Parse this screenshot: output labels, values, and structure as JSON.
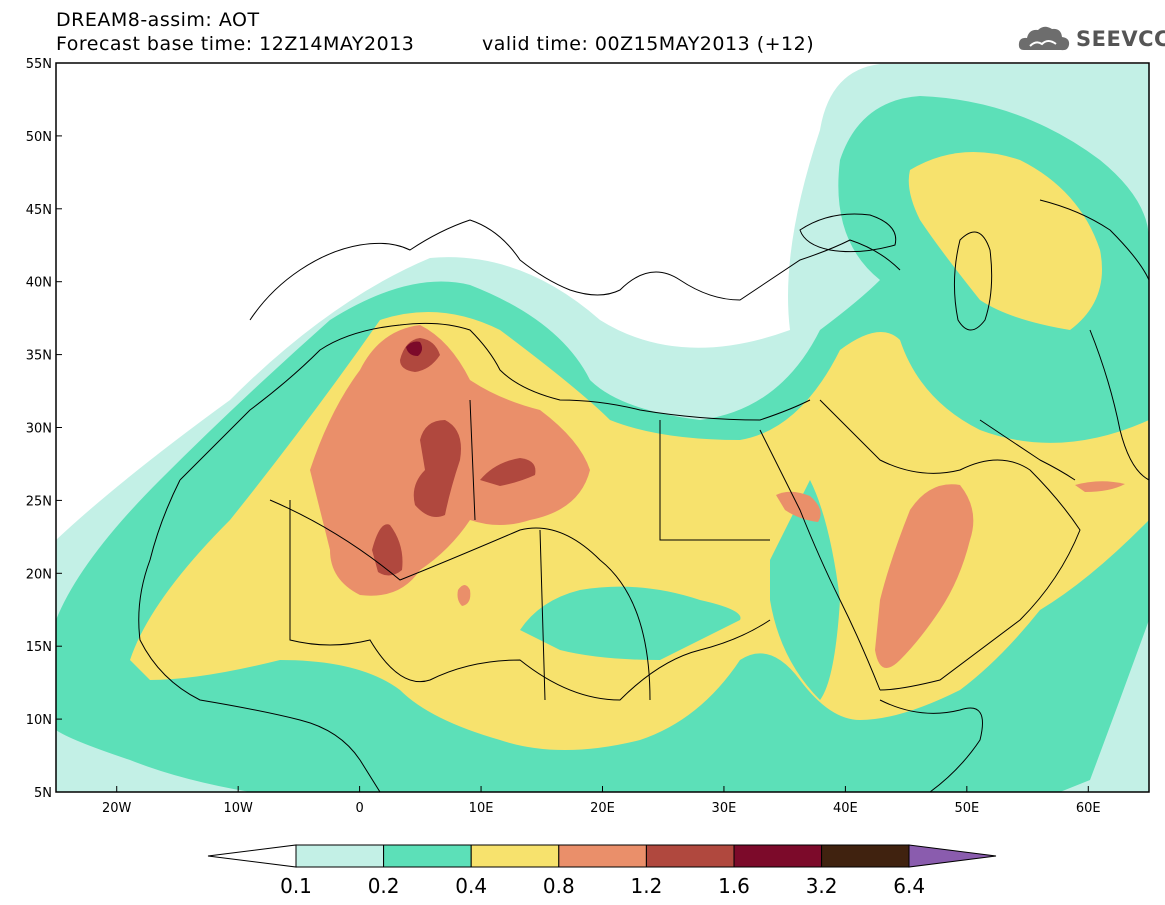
{
  "header": {
    "title_line1": "DREAM8-assim: AOT",
    "title_line2": "Forecast base time: 12Z14MAY2013",
    "valid_time": "valid time: 00Z15MAY2013 (+12)",
    "logo_text": "SEEVCCC"
  },
  "map": {
    "variable": "AOT",
    "lon_range": [
      -25,
      65
    ],
    "lat_range": [
      5,
      55
    ],
    "lat_ticks": [
      "55N",
      "50N",
      "45N",
      "40N",
      "35N",
      "30N",
      "25N",
      "20N",
      "15N",
      "10N",
      "5N"
    ],
    "lon_ticks": [
      "20W",
      "10W",
      "0",
      "10E",
      "20E",
      "30E",
      "40E",
      "50E",
      "60E"
    ]
  },
  "legend": {
    "levels": [
      "0.1",
      "0.2",
      "0.4",
      "0.8",
      "1.2",
      "1.6",
      "3.2",
      "6.4"
    ],
    "colors": [
      "#ffffff",
      "#c3f0e6",
      "#5ce0b8",
      "#f7e26d",
      "#ea8f6a",
      "#b0483e",
      "#7c0a2a",
      "#40220f",
      "#8a5cae"
    ]
  },
  "colors": {
    "c01": "#c3f0e6",
    "c02": "#5ce0b8",
    "c04": "#f7e26d",
    "c08": "#ea8f6a",
    "c12": "#b0483e",
    "c16": "#7c0a2a"
  }
}
